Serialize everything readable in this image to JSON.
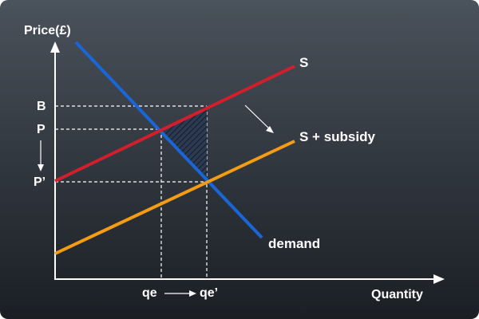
{
  "axes": {
    "y_title": "Price(£)",
    "x_title": "Quantity",
    "y_ticks": {
      "b": "B",
      "p": "P",
      "p_prime": "P’"
    },
    "x_ticks": {
      "qe": "qe",
      "qe_prime": "qe’"
    }
  },
  "curves": {
    "supply_label": "S",
    "subsidy_label": "S + subsidy",
    "demand_label": "demand"
  },
  "colors": {
    "supply": "#d21f2b",
    "subsidy_supply": "#f59c14",
    "demand": "#1a66d9",
    "axis": "#ffffff",
    "text": "#ffffff",
    "welfare_loss_hatch": "#1f3150"
  }
}
